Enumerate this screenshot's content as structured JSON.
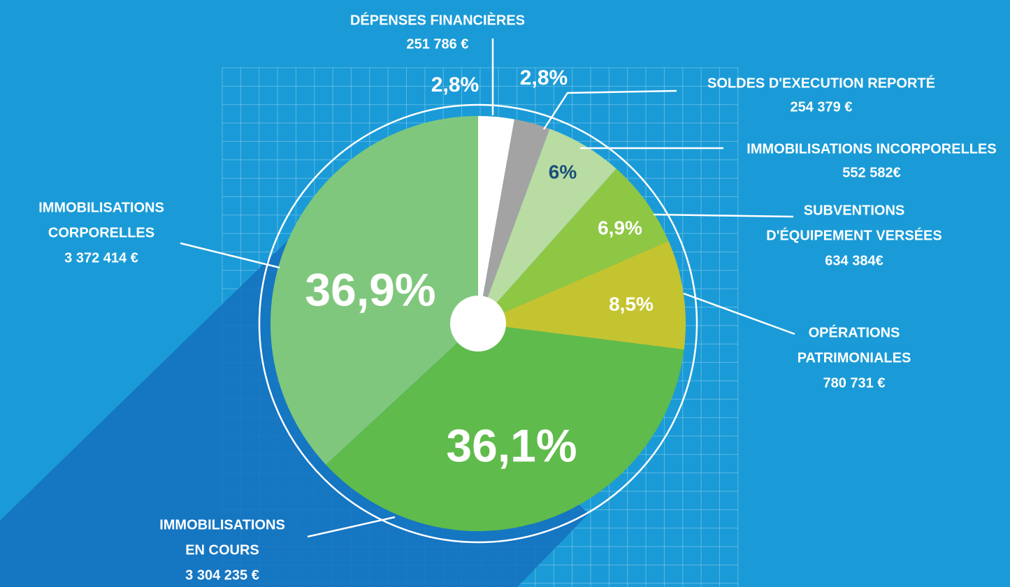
{
  "chart_data": {
    "type": "pie",
    "categories": [
      [
        "DÉPENSES FINANCIÈRES"
      ],
      [
        "SOLDES D'EXECUTION REPORTÉ"
      ],
      [
        "IMMOBILISATIONS INCORPORELLES"
      ],
      [
        "SUBVENTIONS",
        "D'ÉQUIPEMENT VERSÉES"
      ],
      [
        "OPÉRATIONS",
        "PATRIMONIALES"
      ],
      [
        "IMMOBILISATIONS",
        "EN COURS"
      ],
      [
        "IMMOBILISATIONS",
        "CORPORELLES"
      ]
    ],
    "amounts": [
      "251 786 €",
      "254 379 €",
      "552 582€",
      "634 384€",
      "780 731 €",
      "3 304 235 €",
      "3 372 414 €"
    ],
    "values": [
      2.8,
      2.8,
      6,
      6.9,
      8.5,
      36.1,
      36.9
    ],
    "value_labels": [
      "2,8%",
      "2,8%",
      "6%",
      "6,9%",
      "8,5%",
      "36,1%",
      "36,9%"
    ],
    "colors": [
      "#ffffff",
      "#a3a3a3",
      "#b8dca2",
      "#8ec743",
      "#c4c430",
      "#5fbb4b",
      "#80c77e"
    ]
  }
}
